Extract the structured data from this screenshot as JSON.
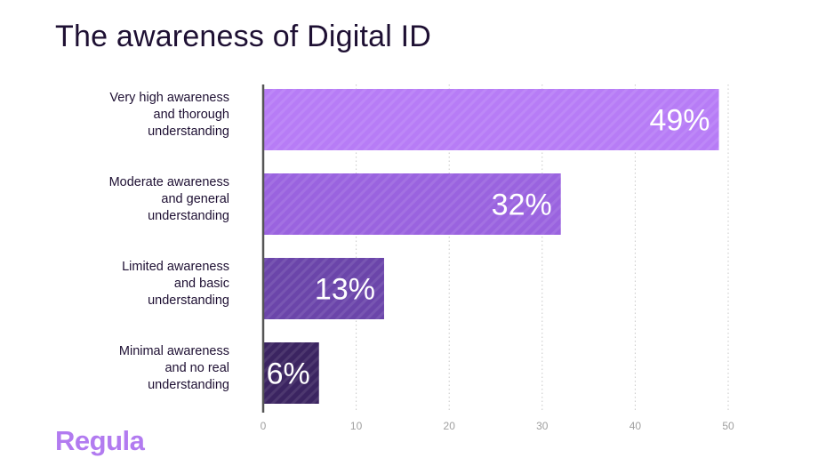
{
  "chart_data": {
    "type": "bar",
    "orientation": "horizontal",
    "title": "The awareness of Digital ID",
    "categories": [
      "Very high awareness and thorough understanding",
      "Moderate awareness and general understanding",
      "Limited awareness and basic understanding",
      "Minimal awareness and no real understanding"
    ],
    "category_lines": [
      [
        "Very high awareness",
        "and thorough",
        "understanding"
      ],
      [
        "Moderate awareness",
        "and general",
        "understanding"
      ],
      [
        "Limited awareness",
        "and basic",
        "understanding"
      ],
      [
        "Minimal awareness",
        "and no real",
        "understanding"
      ]
    ],
    "values": [
      49,
      32,
      13,
      6
    ],
    "data_labels": [
      "49%",
      "32%",
      "13%",
      "6%"
    ],
    "xlim": [
      0,
      50
    ],
    "xticks": [
      "0",
      "10",
      "20",
      "30",
      "40",
      "50"
    ],
    "grid": true,
    "bar_colors": [
      "#b77cf6",
      "#9a63df",
      "#6b45aa",
      "#3b2461"
    ]
  },
  "brand": "Regula",
  "brand_color": "#b27bf0"
}
